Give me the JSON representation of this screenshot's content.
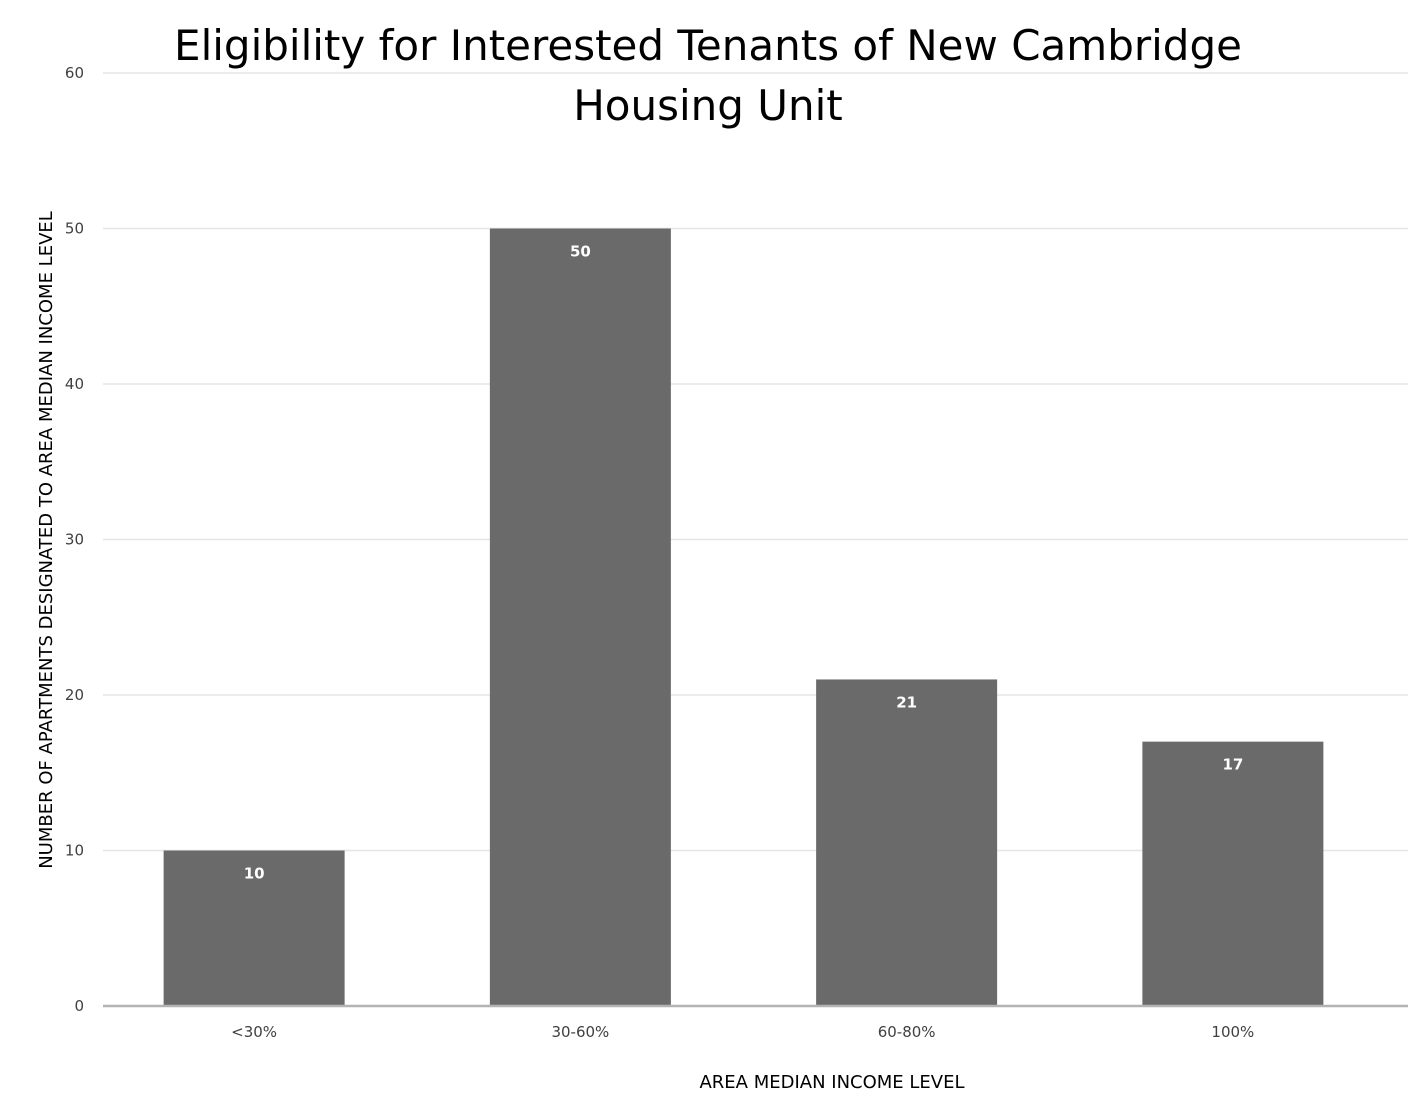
{
  "chart_data": {
    "type": "bar",
    "title_lines": [
      "Eligibility for Interested Tenants of New Cambridge",
      "Housing Unit"
    ],
    "xlabel": "AREA MEDIAN INCOME LEVEL",
    "ylabel": "NUMBER OF APARTMENTS DESIGNATED TO AREA MEDIAN INCOME LEVEL",
    "categories": [
      "<30%",
      "30-60%",
      "60-80%",
      "100%"
    ],
    "values": [
      10,
      50,
      21,
      17
    ],
    "data_labels": [
      "10",
      "50",
      "21",
      "17"
    ],
    "ylim": [
      0,
      60
    ],
    "yticks": [
      0,
      10,
      20,
      30,
      40,
      50,
      60
    ],
    "ytick_labels": [
      "0",
      "10",
      "20",
      "30",
      "40",
      "50",
      "60"
    ],
    "grid": true,
    "legend": "none",
    "colors": {
      "bar": "#6a6a6a"
    }
  }
}
